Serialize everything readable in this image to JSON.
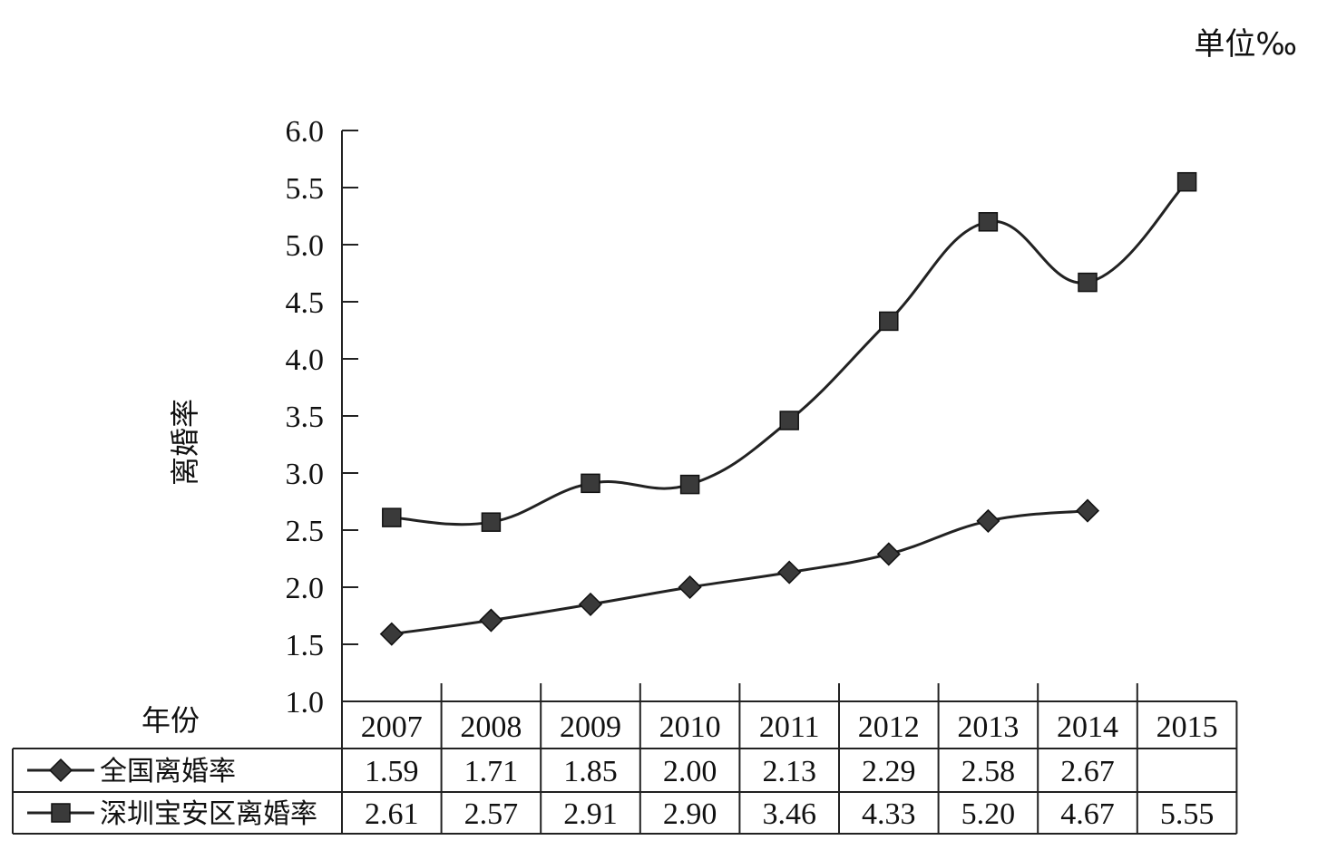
{
  "chart_data": {
    "type": "line",
    "unit_label": "单位‰",
    "ylabel": "离婚率",
    "xlabel": "年份",
    "ylim": [
      1.0,
      6.0
    ],
    "yticks": [
      "1.0",
      "1.5",
      "2.0",
      "2.5",
      "3.0",
      "3.5",
      "4.0",
      "4.5",
      "5.0",
      "5.5",
      "6.0"
    ],
    "categories": [
      "2007",
      "2008",
      "2009",
      "2010",
      "2011",
      "2012",
      "2013",
      "2014",
      "2015"
    ],
    "series": [
      {
        "name": "全国离婚率",
        "marker": "diamond",
        "values": [
          1.59,
          1.71,
          1.85,
          2.0,
          2.13,
          2.29,
          2.58,
          2.67,
          null
        ],
        "labels": [
          "1.59",
          "1.71",
          "1.85",
          "2.00",
          "2.13",
          "2.29",
          "2.58",
          "2.67",
          ""
        ]
      },
      {
        "name": "深圳宝安区离婚率",
        "marker": "square",
        "values": [
          2.61,
          2.57,
          2.91,
          2.9,
          3.46,
          4.33,
          5.2,
          4.67,
          5.55
        ],
        "labels": [
          "2.61",
          "2.57",
          "2.91",
          "2.90",
          "3.46",
          "4.33",
          "5.20",
          "4.67",
          "5.55"
        ]
      }
    ],
    "colors": {
      "line": "#222222",
      "marker": "#3a3a3a",
      "table": "#222222"
    },
    "legend": "data-table-bottom",
    "grid": false
  }
}
